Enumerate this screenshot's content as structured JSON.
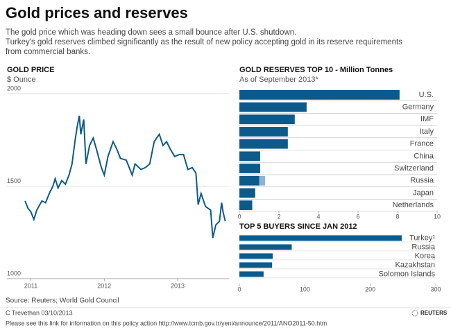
{
  "header": {
    "title": "Gold prices and reserves",
    "subtitle": [
      "The gold price which was heading down sees a small bounce after U.S. shutdown.",
      "Turkey's gold reserves climbed significantly as the result of new policy accepting gold in its reserve requirements",
      "from commercial banks."
    ]
  },
  "chart_data": [
    {
      "type": "line",
      "title": "GOLD PRICE",
      "subtitle": "$ Ounce",
      "color": "#0b5a8a",
      "grid": true,
      "x": [
        2010.92,
        2010.96,
        2011.0,
        2011.04,
        2011.08,
        2011.15,
        2011.2,
        2011.25,
        2011.3,
        2011.33,
        2011.37,
        2011.42,
        2011.47,
        2011.52,
        2011.56,
        2011.6,
        2011.63,
        2011.66,
        2011.68,
        2011.72,
        2011.75,
        2011.8,
        2011.85,
        2011.9,
        2011.96,
        2012.0,
        2012.05,
        2012.12,
        2012.17,
        2012.22,
        2012.3,
        2012.38,
        2012.42,
        2012.5,
        2012.56,
        2012.62,
        2012.68,
        2012.75,
        2012.8,
        2012.85,
        2012.9,
        2012.96,
        2013.02,
        2013.08,
        2013.14,
        2013.2,
        2013.25,
        2013.28,
        2013.32,
        2013.38,
        2013.45,
        2013.48,
        2013.52,
        2013.57,
        2013.6,
        2013.62,
        2013.65
      ],
      "values": [
        1420,
        1380,
        1360,
        1320,
        1370,
        1420,
        1410,
        1460,
        1500,
        1540,
        1490,
        1530,
        1510,
        1560,
        1620,
        1740,
        1820,
        1880,
        1780,
        1860,
        1620,
        1720,
        1760,
        1690,
        1600,
        1560,
        1660,
        1740,
        1700,
        1650,
        1640,
        1560,
        1620,
        1590,
        1600,
        1620,
        1740,
        1780,
        1720,
        1740,
        1700,
        1660,
        1670,
        1670,
        1590,
        1600,
        1570,
        1400,
        1460,
        1390,
        1370,
        1220,
        1290,
        1310,
        1410,
        1360,
        1310
      ],
      "xlim": [
        2010.9,
        2013.7
      ],
      "xticks": [
        2011,
        2012,
        2013
      ],
      "ylim": [
        1000,
        2000
      ],
      "yticks": [
        1000,
        1500,
        2000
      ]
    },
    {
      "type": "barh",
      "title": "GOLD RESERVES TOP 10 - Million Tonnes",
      "subtitle": "As of September 2013*",
      "categories": [
        "U.S.",
        "Germany",
        "IMF",
        "Italy",
        "France",
        "China",
        "Switzerland",
        "Russia",
        "Japan",
        "Netherlands"
      ],
      "series": [
        {
          "color": "#0b5a8a",
          "values": [
            8.1,
            3.4,
            2.8,
            2.45,
            2.45,
            1.05,
            1.05,
            1.0,
            0.8,
            0.65
          ]
        },
        {
          "color": "#8fb3d6",
          "values": [
            null,
            null,
            null,
            null,
            null,
            null,
            null,
            0.3,
            null,
            null
          ]
        }
      ],
      "xlim": [
        0,
        10
      ],
      "xticks": [
        0,
        2,
        4,
        6,
        8,
        10
      ]
    },
    {
      "type": "barh",
      "title": "TOP 5 BUYERS SINCE JAN 2012",
      "categories": [
        "Turkey¹",
        "Russia",
        "Korea",
        "Kazakhstan",
        "Solomon Islands"
      ],
      "series": [
        {
          "color": "#0b5a8a",
          "values": [
            248,
            80,
            51,
            50,
            37
          ]
        }
      ],
      "xlim": [
        0,
        300
      ],
      "xticks": [
        0,
        100,
        200,
        300
      ]
    }
  ],
  "footer": {
    "source": "Source: Reuters; World Gold Council",
    "credit": "C Trevethan  03/10/2013",
    "note": "Please see this link for information on this policy action http://www.tcmb.gov.tr/yeni/announce/2011/ANO2011-50.htm",
    "logo": "REUTERS"
  }
}
